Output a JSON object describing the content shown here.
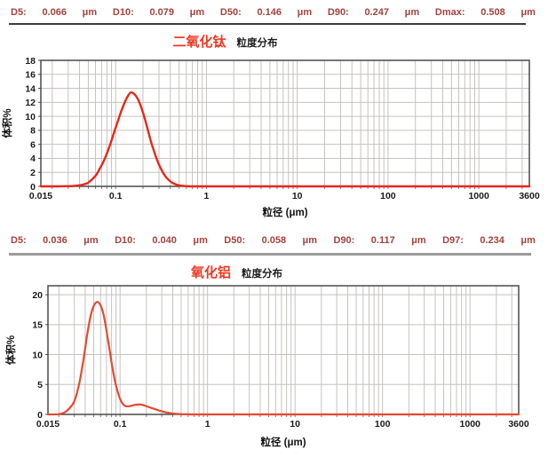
{
  "sections": [
    {
      "stats": [
        {
          "label": "D5:",
          "value": "0.066",
          "unit": "μm"
        },
        {
          "label": "D10:",
          "value": "0.079",
          "unit": "μm"
        },
        {
          "label": "D50:",
          "value": "0.146",
          "unit": "μm"
        },
        {
          "label": "D90:",
          "value": "0.247",
          "unit": "μm"
        },
        {
          "label": "Dmax:",
          "value": "0.508",
          "unit": "μm"
        }
      ],
      "title_material": "二氧化钛",
      "title_suffix": "粒度分布"
    },
    {
      "stats": [
        {
          "label": "D5:",
          "value": "0.036",
          "unit": "μm"
        },
        {
          "label": "D10:",
          "value": "0.040",
          "unit": "μm"
        },
        {
          "label": "D50:",
          "value": "0.058",
          "unit": "μm"
        },
        {
          "label": "D90:",
          "value": "0.117",
          "unit": "μm"
        },
        {
          "label": "D97:",
          "value": "0.234",
          "unit": "μm"
        }
      ],
      "title_material": "氧化铝",
      "title_suffix": "粒度分布"
    }
  ],
  "colors": {
    "curve_tio2": "#e8271b",
    "curve_al2o3": "#e6492f",
    "stats_text": "#a6423c",
    "title_red": "#ef3823",
    "grid": "#c6c2be",
    "border": "#4a4a4a"
  },
  "chart_data": [
    {
      "type": "line",
      "title": "二氧化钛 粒度分布",
      "xlabel": "粒径 (μm)",
      "ylabel": "体积%",
      "x_scale": "log",
      "xlim": [
        0.015,
        3600
      ],
      "ylim": [
        0,
        18
      ],
      "y_ticks": [
        0,
        2,
        4,
        6,
        8,
        10,
        12,
        14,
        16,
        18
      ],
      "x_tick_values": [
        0.015,
        0.1,
        1,
        10,
        100,
        1000,
        3600
      ],
      "x_tick_labels": [
        "0.015",
        "0.1",
        "1",
        "10",
        "100",
        "1000",
        "3600"
      ],
      "grid": true,
      "legend": "none",
      "peak": {
        "x": 0.146,
        "y": 13.4
      },
      "stats": {
        "D5": 0.066,
        "D10": 0.079,
        "D50": 0.146,
        "D90": 0.247,
        "Dmax": 0.508
      },
      "series": [
        {
          "name": "二氧化钛",
          "color": "#e8271b",
          "points": [
            [
              0.015,
              0
            ],
            [
              0.02,
              0
            ],
            [
              0.025,
              0.01
            ],
            [
              0.03,
              0.03
            ],
            [
              0.035,
              0.07
            ],
            [
              0.04,
              0.15
            ],
            [
              0.045,
              0.3
            ],
            [
              0.05,
              0.55
            ],
            [
              0.06,
              1.5
            ],
            [
              0.066,
              2.4
            ],
            [
              0.075,
              3.8
            ],
            [
              0.085,
              5.6
            ],
            [
              0.095,
              7.5
            ],
            [
              0.105,
              9.2
            ],
            [
              0.115,
              10.7
            ],
            [
              0.125,
              11.9
            ],
            [
              0.135,
              12.8
            ],
            [
              0.146,
              13.4
            ],
            [
              0.16,
              13.2
            ],
            [
              0.175,
              12.5
            ],
            [
              0.19,
              11.4
            ],
            [
              0.21,
              9.6
            ],
            [
              0.23,
              7.7
            ],
            [
              0.25,
              6.0
            ],
            [
              0.28,
              4.1
            ],
            [
              0.31,
              2.7
            ],
            [
              0.35,
              1.5
            ],
            [
              0.4,
              0.7
            ],
            [
              0.45,
              0.33
            ],
            [
              0.508,
              0.12
            ],
            [
              0.6,
              0.03
            ],
            [
              0.7,
              0
            ],
            [
              1,
              0
            ],
            [
              3,
              0
            ],
            [
              10,
              0
            ],
            [
              30,
              0
            ],
            [
              100,
              0
            ],
            [
              300,
              0
            ],
            [
              1000,
              0
            ],
            [
              3600,
              0
            ]
          ]
        }
      ]
    },
    {
      "type": "line",
      "title": "氧化铝 粒度分布",
      "xlabel": "粒径 (μm)",
      "ylabel": "体积%",
      "x_scale": "log",
      "xlim": [
        0.015,
        3600
      ],
      "ylim": [
        0,
        21.5
      ],
      "y_ticks": [
        0,
        5,
        10,
        15,
        20
      ],
      "x_tick_values": [
        0.015,
        0.1,
        1,
        10,
        100,
        1000,
        3600
      ],
      "x_tick_labels": [
        "0.015",
        "0.1",
        "1",
        "10",
        "100",
        "1000",
        "3600"
      ],
      "grid": true,
      "legend": "none",
      "peak": {
        "x": 0.055,
        "y": 18.8
      },
      "stats": {
        "D5": 0.036,
        "D10": 0.04,
        "D50": 0.058,
        "D90": 0.117,
        "D97": 0.234
      },
      "series": [
        {
          "name": "氧化铝",
          "color": "#e6492f",
          "points": [
            [
              0.015,
              0
            ],
            [
              0.018,
              0
            ],
            [
              0.02,
              0.05
            ],
            [
              0.023,
              0.3
            ],
            [
              0.026,
              0.9
            ],
            [
              0.03,
              2.2
            ],
            [
              0.034,
              5.0
            ],
            [
              0.038,
              9.0
            ],
            [
              0.042,
              13.2
            ],
            [
              0.046,
              16.4
            ],
            [
              0.05,
              18.1
            ],
            [
              0.055,
              18.8
            ],
            [
              0.06,
              18.2
            ],
            [
              0.065,
              16.6
            ],
            [
              0.07,
              14.0
            ],
            [
              0.076,
              10.8
            ],
            [
              0.082,
              7.7
            ],
            [
              0.09,
              4.8
            ],
            [
              0.1,
              2.6
            ],
            [
              0.11,
              1.6
            ],
            [
              0.12,
              1.35
            ],
            [
              0.13,
              1.4
            ],
            [
              0.15,
              1.6
            ],
            [
              0.17,
              1.65
            ],
            [
              0.19,
              1.5
            ],
            [
              0.22,
              1.15
            ],
            [
              0.26,
              0.8
            ],
            [
              0.3,
              0.5
            ],
            [
              0.35,
              0.28
            ],
            [
              0.42,
              0.12
            ],
            [
              0.5,
              0.05
            ],
            [
              0.6,
              0.01
            ],
            [
              0.7,
              0
            ],
            [
              1,
              0
            ],
            [
              3,
              0
            ],
            [
              10,
              0
            ],
            [
              30,
              0
            ],
            [
              100,
              0
            ],
            [
              300,
              0
            ],
            [
              1000,
              0
            ],
            [
              3600,
              0
            ]
          ]
        }
      ]
    }
  ]
}
